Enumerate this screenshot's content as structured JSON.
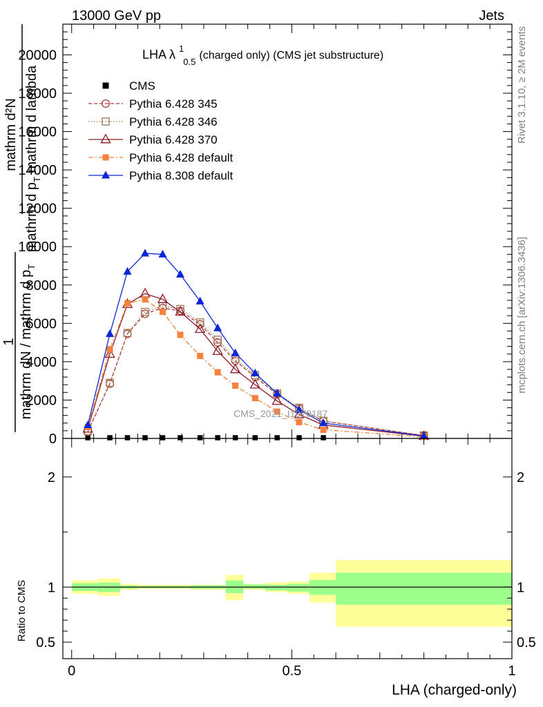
{
  "header": {
    "left": "13000 GeV pp",
    "right": "Jets"
  },
  "side_labels": {
    "rivet": "Rivet 3.1.10, ≥ 2M events",
    "mcplots": "mcplots.cern.ch [arXiv:1306.3436]"
  },
  "plot_title": {
    "main": "LHA λ",
    "sup": "1",
    "sub": "0.5",
    "rest": " (charged only) (CMS jet substructure)"
  },
  "watermark": "CMS_2021_I1920187",
  "upper_ylabel": {
    "numerator": "mathrm d²N",
    "denominator_main": "mathrm d p",
    "denominator_sub": "T",
    "denominator_rest": " mathrm d lambda",
    "overlap_numerator": "1",
    "overlap_denominator": "mathrm dN / mathrm d p",
    "overlap_sub": "T"
  },
  "lower_ylabel": "Ratio to CMS",
  "xlabel": "LHA (charged-only)",
  "chart_data": [
    {
      "type": "line",
      "panel": "main",
      "xlim": [
        -0.02,
        1.0
      ],
      "ylim": [
        0,
        21600
      ],
      "yticks": [
        0,
        2000,
        4000,
        6000,
        8000,
        10000,
        12000,
        14000,
        16000,
        18000,
        20000
      ],
      "ytick_labels": [
        "0",
        "2000",
        "4000",
        "6000",
        "8000",
        "10000",
        "12000",
        "14000",
        "16000",
        "18000",
        "20000"
      ],
      "legend_position": "top-left",
      "series": [
        {
          "name": "CMS",
          "color": "#000000",
          "marker": "square-filled",
          "line": "none",
          "x": [
            0.0367,
            0.0867,
            0.1267,
            0.1667,
            0.2067,
            0.2467,
            0.2917,
            0.3317,
            0.3717,
            0.4167,
            0.4667,
            0.5167,
            0.5717
          ],
          "y": [
            5,
            10,
            12,
            14,
            14,
            13,
            12,
            10,
            8,
            6,
            4,
            3,
            2
          ]
        },
        {
          "name": "Pythia 6.428 345",
          "color": "#b2373c",
          "marker": "circle-open",
          "line": "dashed",
          "x": [
            0.0367,
            0.0867,
            0.1267,
            0.1667,
            0.2067,
            0.2467,
            0.2917,
            0.3317,
            0.3717,
            0.4167,
            0.4667,
            0.5167,
            0.5717,
            0.8
          ],
          "y": [
            350,
            2850,
            5450,
            6500,
            6800,
            6650,
            5950,
            5000,
            4050,
            3200,
            2300,
            1550,
            900,
            150
          ]
        },
        {
          "name": "Pythia 6.428 346",
          "color": "#9a7a4e",
          "marker": "square-open",
          "line": "dotted",
          "x": [
            0.0367,
            0.0867,
            0.1267,
            0.1667,
            0.2067,
            0.2467,
            0.2917,
            0.3317,
            0.3717,
            0.4167,
            0.4667,
            0.5167,
            0.5717,
            0.8
          ],
          "y": [
            380,
            2900,
            5500,
            6600,
            6900,
            6750,
            6050,
            5150,
            4150,
            3300,
            2350,
            1600,
            920,
            160
          ]
        },
        {
          "name": "Pythia 6.428 370",
          "color": "#8b1a24",
          "marker": "triangle-open",
          "line": "solid",
          "x": [
            0.0367,
            0.0867,
            0.1267,
            0.1667,
            0.2067,
            0.2467,
            0.2917,
            0.3317,
            0.3717,
            0.4167,
            0.4667,
            0.5167,
            0.5717,
            0.8
          ],
          "y": [
            500,
            4400,
            7000,
            7550,
            7250,
            6600,
            5700,
            4550,
            3600,
            2800,
            1950,
            1250,
            700,
            120
          ]
        },
        {
          "name": "Pythia 6.428 default",
          "color": "#f5813c",
          "marker": "square-filled",
          "line": "dashdot",
          "x": [
            0.0367,
            0.0867,
            0.1267,
            0.1667,
            0.2067,
            0.2467,
            0.2917,
            0.3317,
            0.3717,
            0.4167,
            0.4667,
            0.5167,
            0.5717,
            0.8
          ],
          "y": [
            600,
            4650,
            7050,
            7250,
            6600,
            5400,
            4300,
            3450,
            2750,
            2100,
            1400,
            850,
            450,
            80
          ]
        },
        {
          "name": "Pythia 8.308 default",
          "color": "#0a26d6",
          "marker": "triangle-filled",
          "line": "solid",
          "x": [
            0.0367,
            0.0867,
            0.1267,
            0.1667,
            0.2067,
            0.2467,
            0.2917,
            0.3317,
            0.3717,
            0.4167,
            0.4667,
            0.5167,
            0.5717,
            0.8
          ],
          "y": [
            700,
            5450,
            8700,
            9650,
            9600,
            8550,
            7150,
            5750,
            4450,
            3400,
            2350,
            1500,
            800,
            130
          ]
        }
      ]
    },
    {
      "type": "band",
      "panel": "ratio",
      "ylabel": "Ratio to CMS",
      "xlabel": "LHA (charged-only)",
      "xlim": [
        -0.02,
        1.0
      ],
      "ylim": [
        0.35,
        2.35
      ],
      "yticks": [
        0.5,
        1,
        2
      ],
      "ytick_labels": [
        "0.5",
        "1",
        "2"
      ],
      "xticks": [
        0,
        0.5,
        1
      ],
      "xtick_labels": [
        "0",
        "0.5",
        "1"
      ],
      "reference_line": 1,
      "inner_color": "#9cff8c",
      "outer_color": "#ffff99",
      "bins": [
        {
          "x": [
            0.0,
            0.06
          ],
          "inner": [
            0.965,
            1.035
          ],
          "outer": [
            0.94,
            1.06
          ]
        },
        {
          "x": [
            0.06,
            0.11
          ],
          "inner": [
            0.955,
            1.04
          ],
          "outer": [
            0.92,
            1.08
          ]
        },
        {
          "x": [
            0.11,
            0.15
          ],
          "inner": [
            0.985,
            1.015
          ],
          "outer": [
            0.975,
            1.03
          ]
        },
        {
          "x": [
            0.15,
            0.27
          ],
          "inner": [
            0.99,
            1.01
          ],
          "outer": [
            0.985,
            1.02
          ]
        },
        {
          "x": [
            0.27,
            0.35
          ],
          "inner": [
            0.985,
            1.015
          ],
          "outer": [
            0.975,
            1.02
          ]
        },
        {
          "x": [
            0.35,
            0.39
          ],
          "inner": [
            0.945,
            1.06
          ],
          "outer": [
            0.88,
            1.11
          ]
        },
        {
          "x": [
            0.39,
            0.44
          ],
          "inner": [
            0.985,
            1.025
          ],
          "outer": [
            0.975,
            1.03
          ]
        },
        {
          "x": [
            0.44,
            0.49
          ],
          "inner": [
            0.97,
            1.02
          ],
          "outer": [
            0.955,
            1.04
          ]
        },
        {
          "x": [
            0.49,
            0.54
          ],
          "inner": [
            0.96,
            1.03
          ],
          "outer": [
            0.94,
            1.05
          ]
        },
        {
          "x": [
            0.54,
            0.6
          ],
          "inner": [
            0.93,
            1.065
          ],
          "outer": [
            0.86,
            1.13
          ]
        },
        {
          "x": [
            0.6,
            1.0
          ],
          "inner": [
            0.84,
            1.13
          ],
          "outer": [
            0.64,
            1.245
          ]
        }
      ]
    }
  ]
}
